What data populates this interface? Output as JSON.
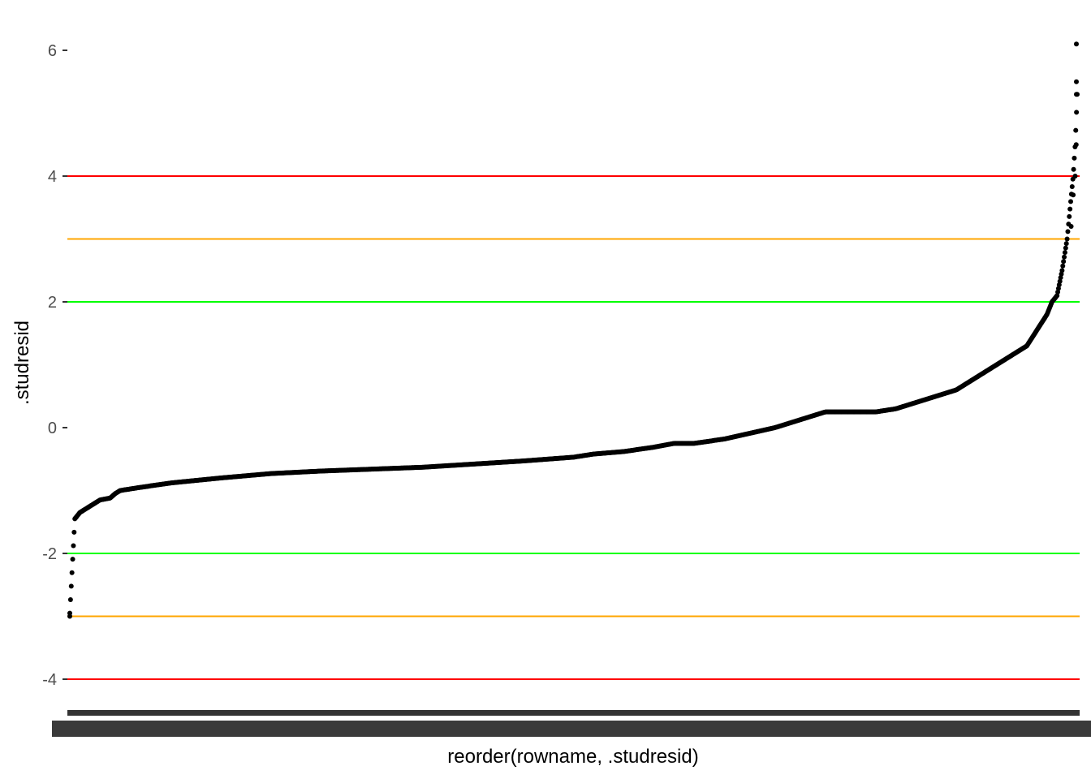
{
  "chart_data": {
    "type": "scatter",
    "title": "",
    "xlabel": "reorder(rowname, .studresid)",
    "ylabel": ".studresid",
    "ylim": [
      -4.55,
      6.3
    ],
    "y_ticks": [
      -4,
      -2,
      0,
      2,
      4,
      6
    ],
    "grid": false,
    "legend": "none",
    "point_color": "#000000",
    "x_tick_labels_note": "overplotted row-name labels (illegible)",
    "reference_lines": [
      {
        "y": 4,
        "color": "#ff0000"
      },
      {
        "y": 3,
        "color": "#ffa500"
      },
      {
        "y": 2,
        "color": "#00ff00"
      },
      {
        "y": -2,
        "color": "#00ff00"
      },
      {
        "y": -3,
        "color": "#ffa500"
      },
      {
        "y": -4,
        "color": "#ff0000"
      }
    ],
    "series": [
      {
        "x": [
          0.0,
          0.005,
          0.01,
          0.02,
          0.03,
          0.04,
          0.045,
          0.05,
          0.07,
          0.1,
          0.15,
          0.2,
          0.25,
          0.3,
          0.35,
          0.4,
          0.45,
          0.5,
          0.52,
          0.55,
          0.58,
          0.6,
          0.62,
          0.65,
          0.7,
          0.72,
          0.75,
          0.8,
          0.82,
          0.85,
          0.88,
          0.9,
          0.92,
          0.94,
          0.95,
          0.96,
          0.97,
          0.975,
          0.98,
          0.985,
          0.99,
          0.993,
          0.996,
          0.998,
          1.0
        ],
        "y": [
          -2.95,
          -1.45,
          -1.35,
          -1.25,
          -1.15,
          -1.12,
          -1.05,
          -1.0,
          -0.95,
          -0.88,
          -0.8,
          -0.73,
          -0.69,
          -0.66,
          -0.63,
          -0.58,
          -0.53,
          -0.47,
          -0.42,
          -0.38,
          -0.31,
          -0.25,
          -0.25,
          -0.18,
          0.0,
          0.1,
          0.25,
          0.25,
          0.3,
          0.45,
          0.6,
          0.8,
          1.0,
          1.2,
          1.3,
          1.55,
          1.8,
          2.0,
          2.1,
          2.5,
          3.0,
          3.5,
          4.0,
          4.5,
          5.3
        ]
      }
    ],
    "outliers": [
      {
        "x": 0.0,
        "y": -3.0
      },
      {
        "x": 0.994,
        "y": 3.2
      },
      {
        "x": 0.996,
        "y": 3.7
      },
      {
        "x": 0.998,
        "y": 4.0
      },
      {
        "x": 0.999,
        "y": 4.5
      },
      {
        "x": 1.0,
        "y": 5.3
      },
      {
        "x": 1.0,
        "y": 5.5
      },
      {
        "x": 1.0,
        "y": 6.1
      }
    ]
  }
}
